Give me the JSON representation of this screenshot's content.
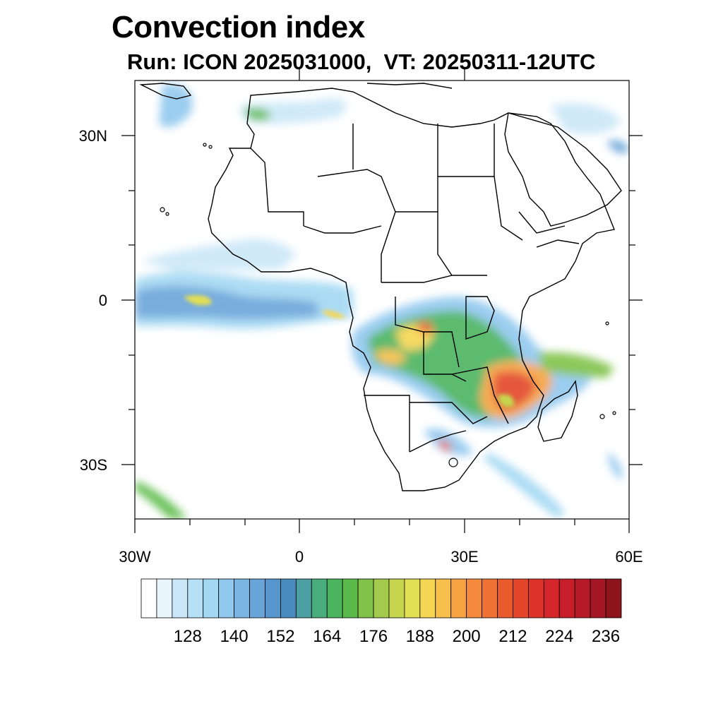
{
  "title": "Convection index",
  "subtitle": "Run: ICON 2025031000,  VT: 20250311-12UTC",
  "axes": {
    "lon_range": [
      -30,
      60
    ],
    "lat_range": [
      -40,
      40
    ],
    "x_ticks": [
      {
        "value": -30,
        "label": "30W"
      },
      {
        "value": 0,
        "label": "0"
      },
      {
        "value": 30,
        "label": "30E"
      },
      {
        "value": 60,
        "label": "60E"
      }
    ],
    "y_ticks": [
      {
        "value": 30,
        "label": "30N"
      },
      {
        "value": 0,
        "label": "0"
      },
      {
        "value": -30,
        "label": "30S"
      }
    ]
  },
  "colorbar": {
    "levels": [
      116,
      120,
      124,
      128,
      132,
      136,
      140,
      144,
      148,
      152,
      156,
      160,
      164,
      168,
      172,
      176,
      180,
      184,
      188,
      192,
      196,
      200,
      204,
      208,
      212,
      216,
      220,
      224,
      228,
      232,
      236,
      240
    ],
    "colors": [
      "#ffffff",
      "#e9f5fc",
      "#cbe7f7",
      "#b5e0f5",
      "#a3d8f3",
      "#90c8ee",
      "#7ab4e2",
      "#6aa5d9",
      "#5796cd",
      "#4a8bbd",
      "#4c9ea1",
      "#4aab7c",
      "#4bb45e",
      "#5bbb4a",
      "#80c24a",
      "#a3ca4c",
      "#c6d54e",
      "#e3df54",
      "#f5d653",
      "#f7bf4b",
      "#f6a443",
      "#f48b3c",
      "#ef7133",
      "#e95a2c",
      "#e34629",
      "#dd3329",
      "#d3272b",
      "#c61e2b",
      "#b71a27",
      "#a51722",
      "#8e141c"
    ],
    "labels": [
      "128",
      "140",
      "152",
      "164",
      "176",
      "188",
      "200",
      "212",
      "224",
      "236"
    ]
  },
  "legend_colors": {
    "land_outline": "#000000",
    "background": "#ffffff"
  }
}
